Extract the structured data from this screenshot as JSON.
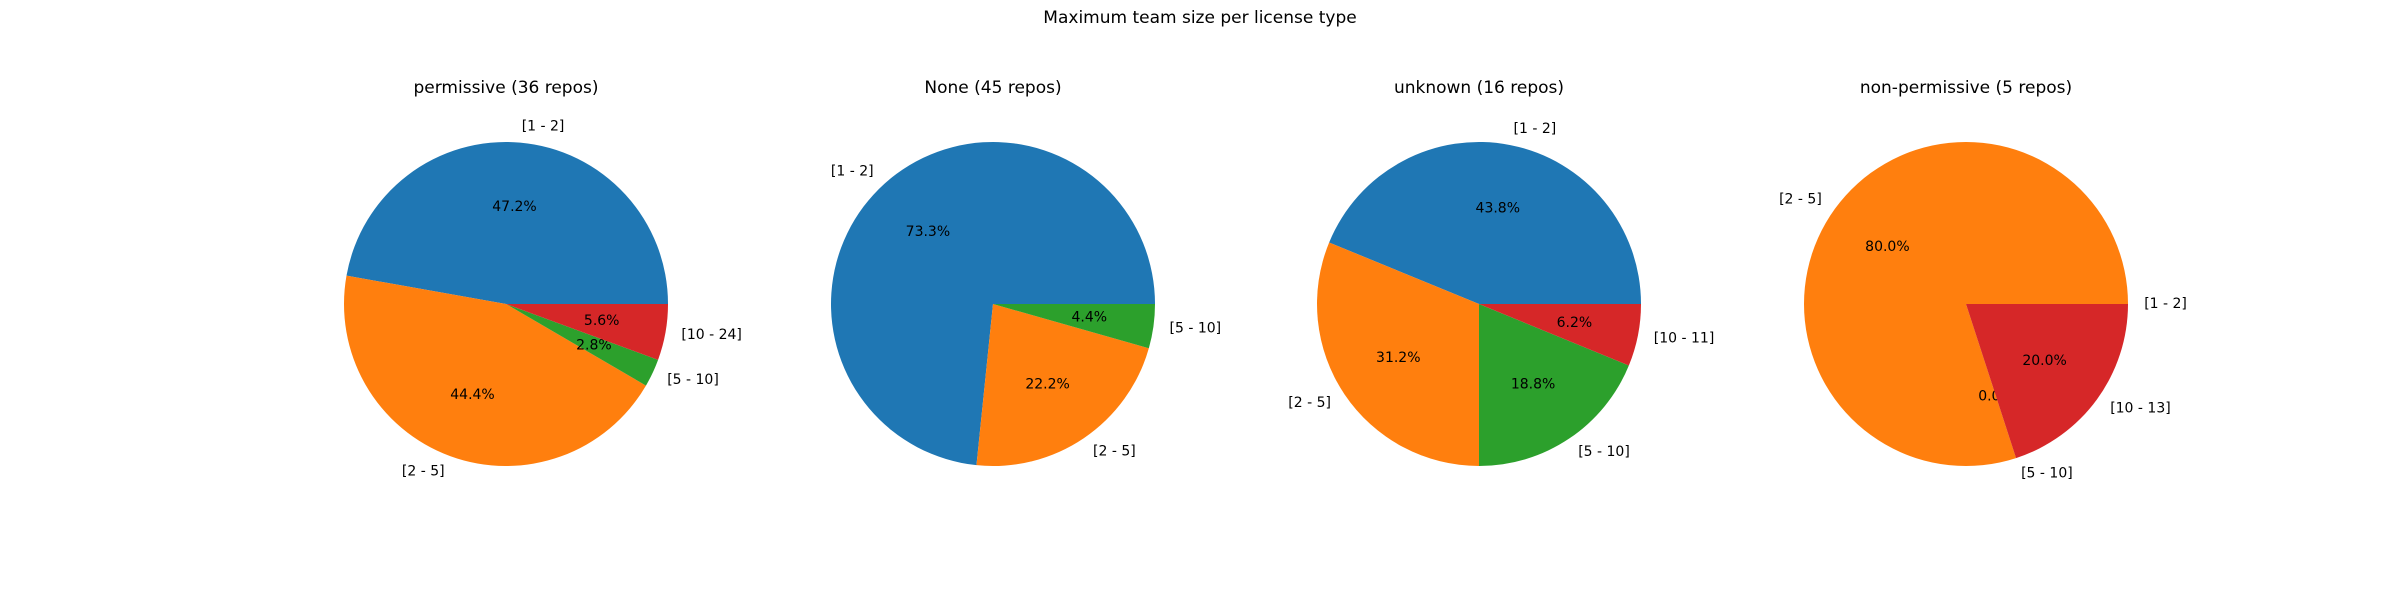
{
  "figure": {
    "title": "Maximum team size per license type"
  },
  "palette": {
    "[1 - 2]": "#1f77b4",
    "[2 - 5]": "#ff7f0e",
    "[5 - 10]": "#2ca02c",
    "[10 - 24]": "#d62728",
    "[10 - 11]": "#d62728",
    "[10 - 13]": "#d62728"
  },
  "chart_data": [
    {
      "type": "pie",
      "title": "permissive (36 repos)",
      "categories": [
        "[1 - 2]",
        "[2 - 5]",
        "[5 - 10]",
        "[10 - 24]"
      ],
      "values": [
        47.2,
        44.4,
        2.8,
        5.6
      ],
      "labels": [
        "47.2%",
        "44.4%",
        "2.8%",
        "5.6%"
      ]
    },
    {
      "type": "pie",
      "title": "None (45 repos)",
      "categories": [
        "[1 - 2]",
        "[2 - 5]",
        "[5 - 10]"
      ],
      "values": [
        73.3,
        22.2,
        4.4
      ],
      "labels": [
        "73.3%",
        "22.2%",
        "4.4%"
      ]
    },
    {
      "type": "pie",
      "title": "unknown (16 repos)",
      "categories": [
        "[1 - 2]",
        "[2 - 5]",
        "[5 - 10]",
        "[10 - 11]"
      ],
      "values": [
        43.8,
        31.2,
        18.8,
        6.2
      ],
      "labels": [
        "43.8%",
        "31.2%",
        "18.8%",
        "6.2%"
      ]
    },
    {
      "type": "pie",
      "title": "non-permissive (5 repos)",
      "categories": [
        "[1 - 2]",
        "[2 - 5]",
        "[5 - 10]",
        "[10 - 13]"
      ],
      "values": [
        0.0,
        80.0,
        0.0,
        20.0
      ],
      "labels": [
        "0.0%",
        "80.0%",
        "0.0%",
        "20.0%"
      ]
    }
  ]
}
